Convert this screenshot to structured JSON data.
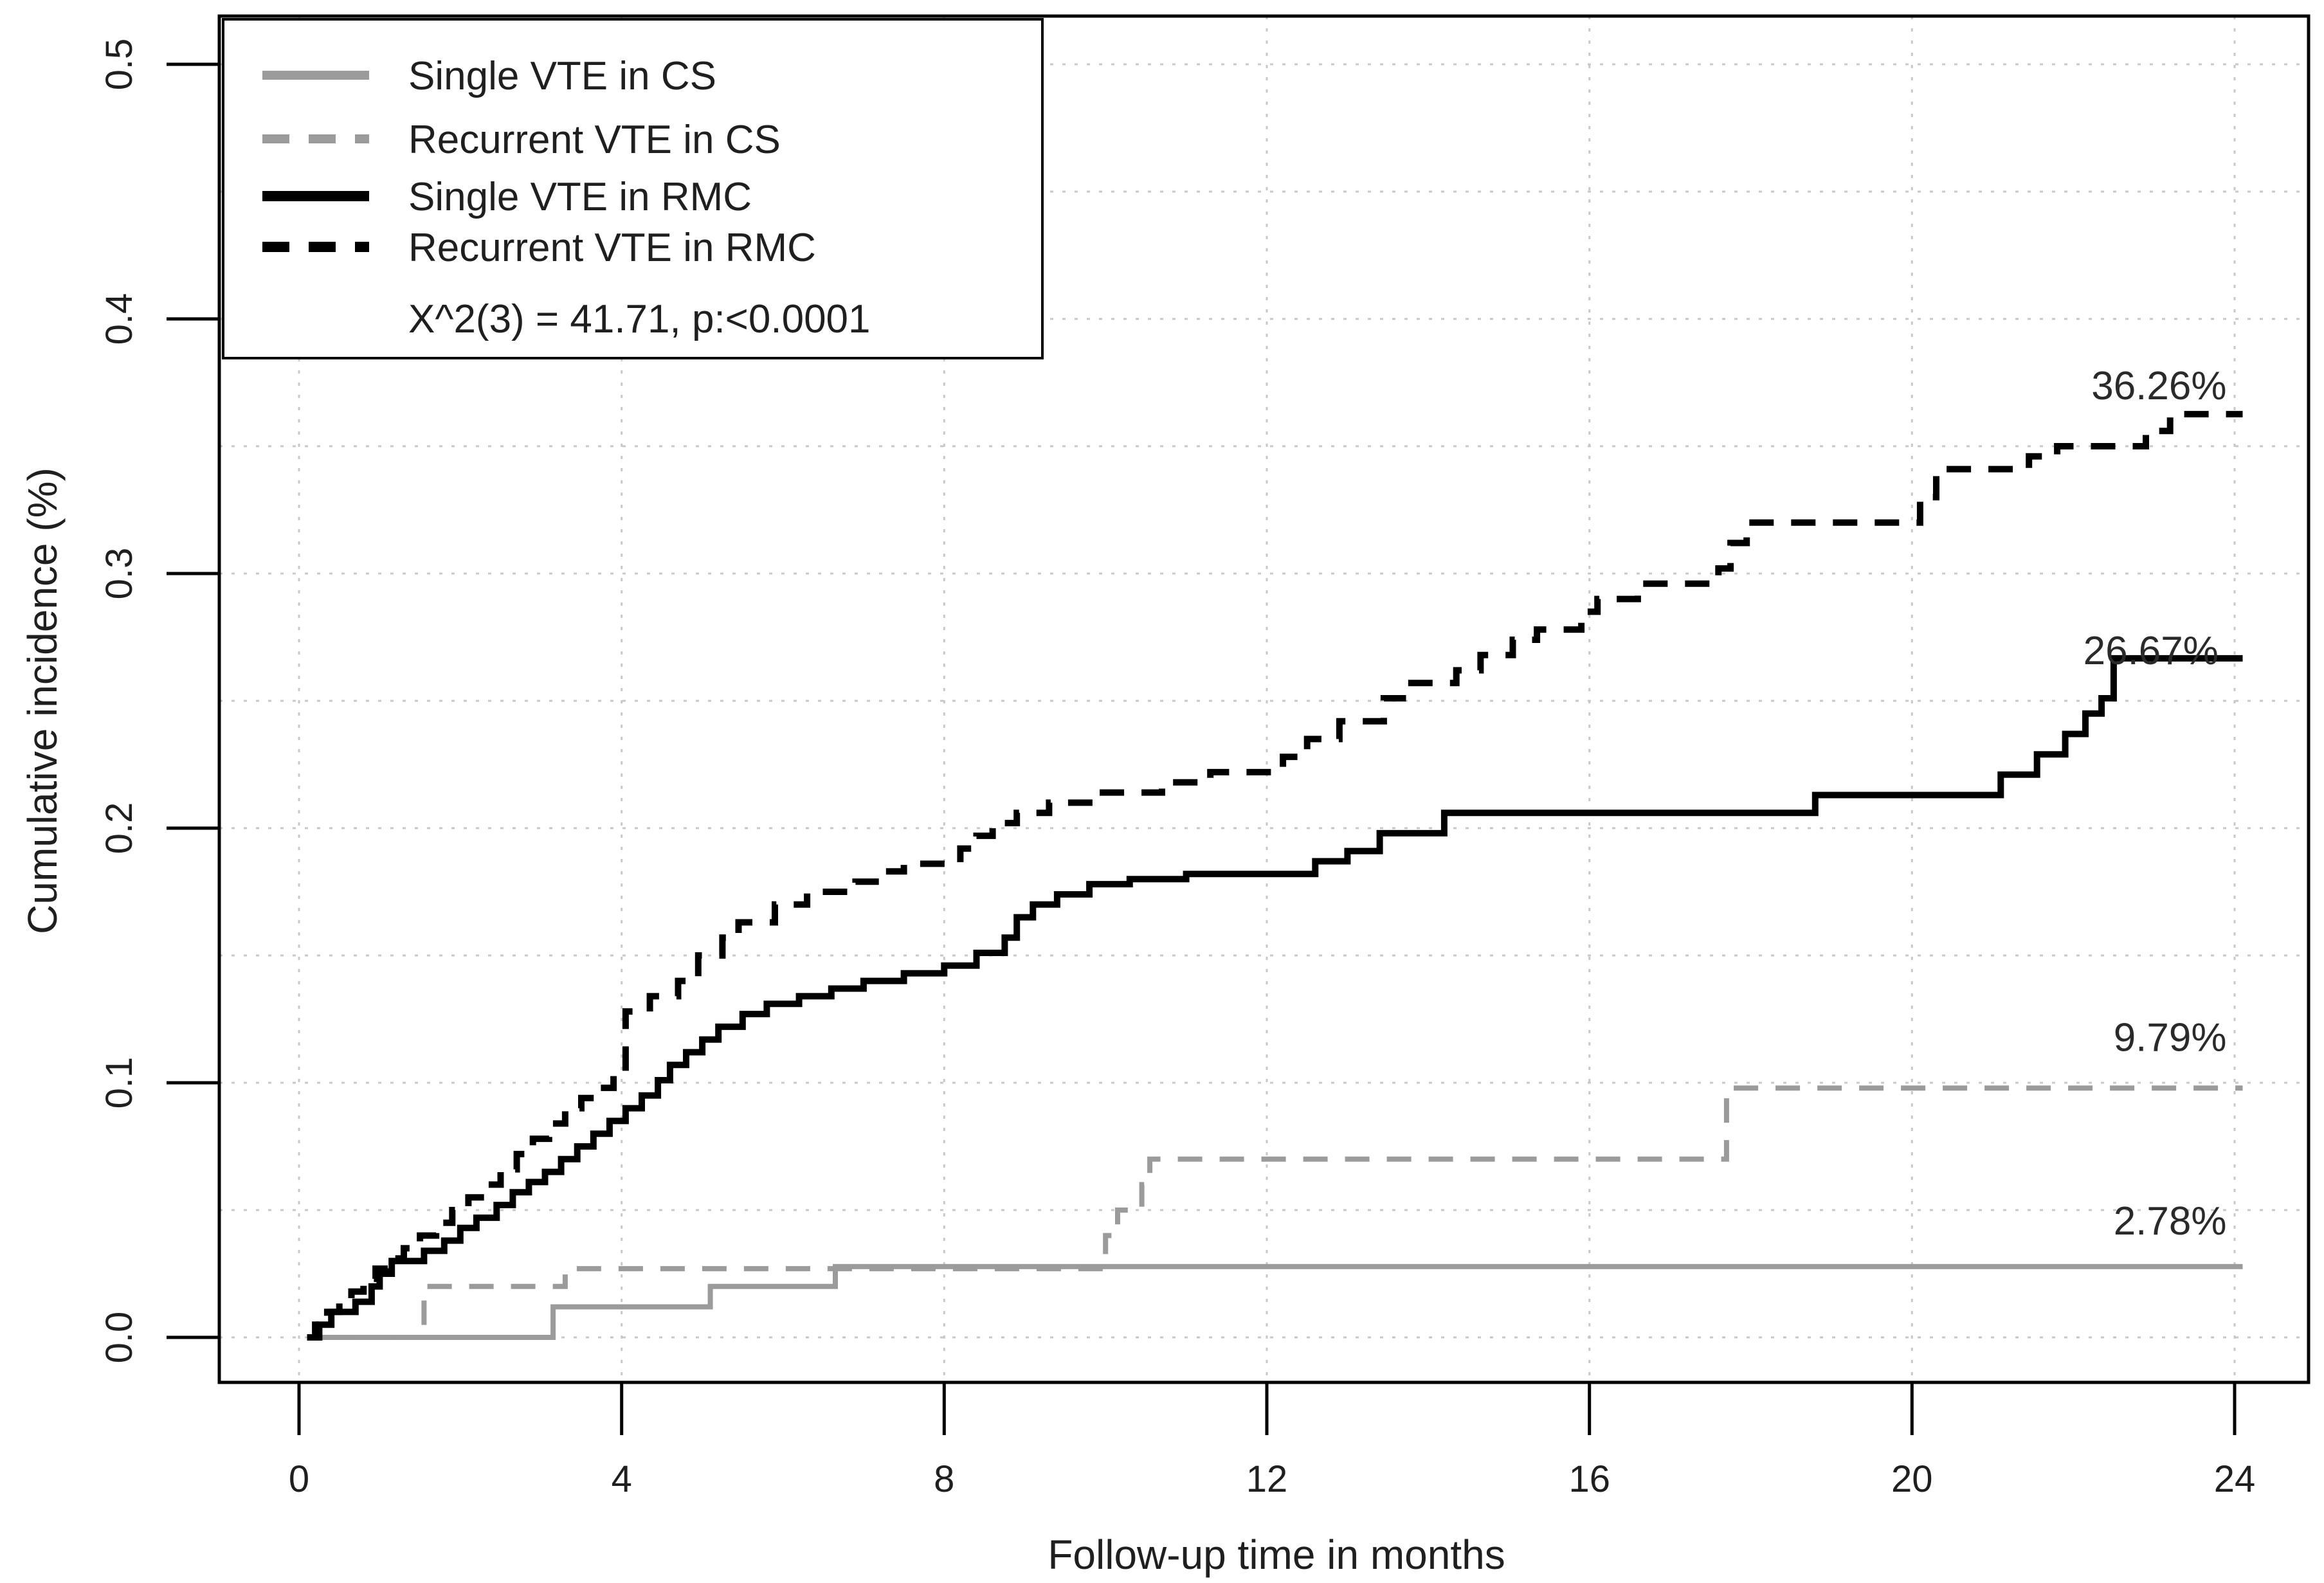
{
  "figure": {
    "kind": "survival-step-plot",
    "background": "#ffffff",
    "border_color": "#000000"
  },
  "chart_data": {
    "type": "line",
    "subtype": "step-cumulative-incidence",
    "title": "",
    "xlabel": "Follow-up time in months",
    "ylabel": "Cumulative incidence (%)",
    "xlim": [
      0,
      24
    ],
    "ylim": [
      0.0,
      0.5
    ],
    "grid": {
      "on": true,
      "style": "dotted",
      "color": "#c8c8c8",
      "x_values": [
        0,
        4,
        8,
        12,
        16,
        20,
        24
      ],
      "y_values": [
        0.0,
        0.05,
        0.1,
        0.15,
        0.2,
        0.25,
        0.3,
        0.35,
        0.4,
        0.45,
        0.5
      ]
    },
    "x_ticks": [
      {
        "v": 0,
        "label": "0"
      },
      {
        "v": 4,
        "label": "4"
      },
      {
        "v": 8,
        "label": "8"
      },
      {
        "v": 12,
        "label": "12"
      },
      {
        "v": 16,
        "label": "16"
      },
      {
        "v": 20,
        "label": "20"
      },
      {
        "v": 24,
        "label": "24"
      }
    ],
    "y_ticks": [
      {
        "v": 0.0,
        "label": "0.0"
      },
      {
        "v": 0.1,
        "label": "0.1"
      },
      {
        "v": 0.2,
        "label": "0.2"
      },
      {
        "v": 0.3,
        "label": "0.3"
      },
      {
        "v": 0.4,
        "label": "0.4"
      },
      {
        "v": 0.5,
        "label": "0.5"
      }
    ],
    "t_end": 24.1,
    "series": [
      {
        "name": "Single VTE in CS",
        "color": "#9b9b9b",
        "dash": "solid",
        "width": 8,
        "final_label": "2.78%",
        "points": [
          [
            0.15,
            0
          ],
          [
            3.15,
            0.012
          ],
          [
            5.1,
            0.02
          ],
          [
            6.65,
            0.0278
          ]
        ]
      },
      {
        "name": "Recurrent VTE in CS",
        "color": "#9b9b9b",
        "dash": "dashed",
        "width": 8,
        "final_label": "9.79%",
        "points": [
          [
            0.15,
            0
          ],
          [
            1.55,
            0.02
          ],
          [
            3.3,
            0.027
          ],
          [
            10.0,
            0.04
          ],
          [
            10.15,
            0.05
          ],
          [
            10.45,
            0.06
          ],
          [
            10.55,
            0.07
          ],
          [
            17.7,
            0.0979
          ]
        ]
      },
      {
        "name": "Single VTE in RMC",
        "color": "#000000",
        "dash": "solid",
        "width": 10,
        "final_label": "26.67%",
        "points": [
          [
            0.1,
            0
          ],
          [
            0.25,
            0.005
          ],
          [
            0.4,
            0.01
          ],
          [
            0.7,
            0.014
          ],
          [
            0.9,
            0.02
          ],
          [
            1.0,
            0.025
          ],
          [
            1.15,
            0.03
          ],
          [
            1.55,
            0.034
          ],
          [
            1.8,
            0.038
          ],
          [
            2.0,
            0.043
          ],
          [
            2.2,
            0.047
          ],
          [
            2.45,
            0.052
          ],
          [
            2.65,
            0.057
          ],
          [
            2.85,
            0.061
          ],
          [
            3.05,
            0.065
          ],
          [
            3.25,
            0.07
          ],
          [
            3.45,
            0.075
          ],
          [
            3.65,
            0.08
          ],
          [
            3.85,
            0.085
          ],
          [
            4.05,
            0.09
          ],
          [
            4.25,
            0.095
          ],
          [
            4.45,
            0.101
          ],
          [
            4.6,
            0.107
          ],
          [
            4.8,
            0.112
          ],
          [
            5.0,
            0.117
          ],
          [
            5.2,
            0.122
          ],
          [
            5.5,
            0.127
          ],
          [
            5.8,
            0.131
          ],
          [
            6.2,
            0.134
          ],
          [
            6.6,
            0.137
          ],
          [
            7.0,
            0.14
          ],
          [
            7.5,
            0.143
          ],
          [
            8.0,
            0.146
          ],
          [
            8.4,
            0.151
          ],
          [
            8.75,
            0.157
          ],
          [
            8.9,
            0.165
          ],
          [
            9.1,
            0.17
          ],
          [
            9.4,
            0.174
          ],
          [
            9.8,
            0.178
          ],
          [
            10.3,
            0.18
          ],
          [
            11.0,
            0.182
          ],
          [
            12.6,
            0.187
          ],
          [
            13.0,
            0.191
          ],
          [
            13.4,
            0.198
          ],
          [
            14.2,
            0.206
          ],
          [
            18.8,
            0.213
          ],
          [
            21.1,
            0.221
          ],
          [
            21.55,
            0.229
          ],
          [
            21.9,
            0.237
          ],
          [
            22.15,
            0.245
          ],
          [
            22.35,
            0.251
          ],
          [
            22.5,
            0.2667
          ]
        ]
      },
      {
        "name": "Recurrent VTE in RMC",
        "color": "#000000",
        "dash": "dashed",
        "width": 10,
        "final_label": "36.26%",
        "points": [
          [
            0.1,
            0
          ],
          [
            0.2,
            0.005
          ],
          [
            0.35,
            0.01
          ],
          [
            0.5,
            0.014
          ],
          [
            0.65,
            0.018
          ],
          [
            0.8,
            0.023
          ],
          [
            0.95,
            0.027
          ],
          [
            1.1,
            0.031
          ],
          [
            1.3,
            0.035
          ],
          [
            1.5,
            0.04
          ],
          [
            1.7,
            0.045
          ],
          [
            1.9,
            0.05
          ],
          [
            2.1,
            0.055
          ],
          [
            2.3,
            0.06
          ],
          [
            2.5,
            0.066
          ],
          [
            2.7,
            0.072
          ],
          [
            2.9,
            0.078
          ],
          [
            3.1,
            0.084
          ],
          [
            3.3,
            0.09
          ],
          [
            3.5,
            0.094
          ],
          [
            3.7,
            0.098
          ],
          [
            3.9,
            0.103
          ],
          [
            4.05,
            0.128
          ],
          [
            4.35,
            0.134
          ],
          [
            4.7,
            0.14
          ],
          [
            4.95,
            0.15
          ],
          [
            5.25,
            0.157
          ],
          [
            5.45,
            0.163
          ],
          [
            5.9,
            0.17
          ],
          [
            6.3,
            0.175
          ],
          [
            6.9,
            0.179
          ],
          [
            7.2,
            0.183
          ],
          [
            7.5,
            0.186
          ],
          [
            8.2,
            0.192
          ],
          [
            8.4,
            0.197
          ],
          [
            8.6,
            0.202
          ],
          [
            8.9,
            0.206
          ],
          [
            9.3,
            0.21
          ],
          [
            9.9,
            0.214
          ],
          [
            10.7,
            0.218
          ],
          [
            11.3,
            0.222
          ],
          [
            12.2,
            0.228
          ],
          [
            12.5,
            0.235
          ],
          [
            12.9,
            0.242
          ],
          [
            13.45,
            0.251
          ],
          [
            13.75,
            0.257
          ],
          [
            14.35,
            0.262
          ],
          [
            14.65,
            0.268
          ],
          [
            15.05,
            0.274
          ],
          [
            15.35,
            0.278
          ],
          [
            15.9,
            0.285
          ],
          [
            16.1,
            0.29
          ],
          [
            16.6,
            0.296
          ],
          [
            17.6,
            0.302
          ],
          [
            17.75,
            0.312
          ],
          [
            17.95,
            0.32
          ],
          [
            20.1,
            0.33
          ],
          [
            20.3,
            0.341
          ],
          [
            21.45,
            0.346
          ],
          [
            21.8,
            0.35
          ],
          [
            22.9,
            0.356
          ],
          [
            23.2,
            0.3626
          ]
        ]
      }
    ],
    "annotations": [
      {
        "label": "36.26%",
        "t": 23.9,
        "v": 0.374
      },
      {
        "label": "26.67%",
        "t": 23.8,
        "v": 0.27
      },
      {
        "label": "9.79%",
        "t": 23.9,
        "v": 0.118
      },
      {
        "label": "2.78%",
        "t": 23.9,
        "v": 0.046
      }
    ],
    "legend": {
      "position": "top-left",
      "border_color": "#000000",
      "background": "#ffffff",
      "entries": [
        {
          "label": "Single VTE in CS",
          "series_index": 0
        },
        {
          "label": "Recurrent VTE in CS",
          "series_index": 1
        },
        {
          "label": "Single VTE in RMC",
          "series_index": 2
        },
        {
          "label": "Recurrent VTE in RMC",
          "series_index": 3
        }
      ],
      "stats_line": "X^2(3) = 41.71, p:<0.0001"
    }
  }
}
